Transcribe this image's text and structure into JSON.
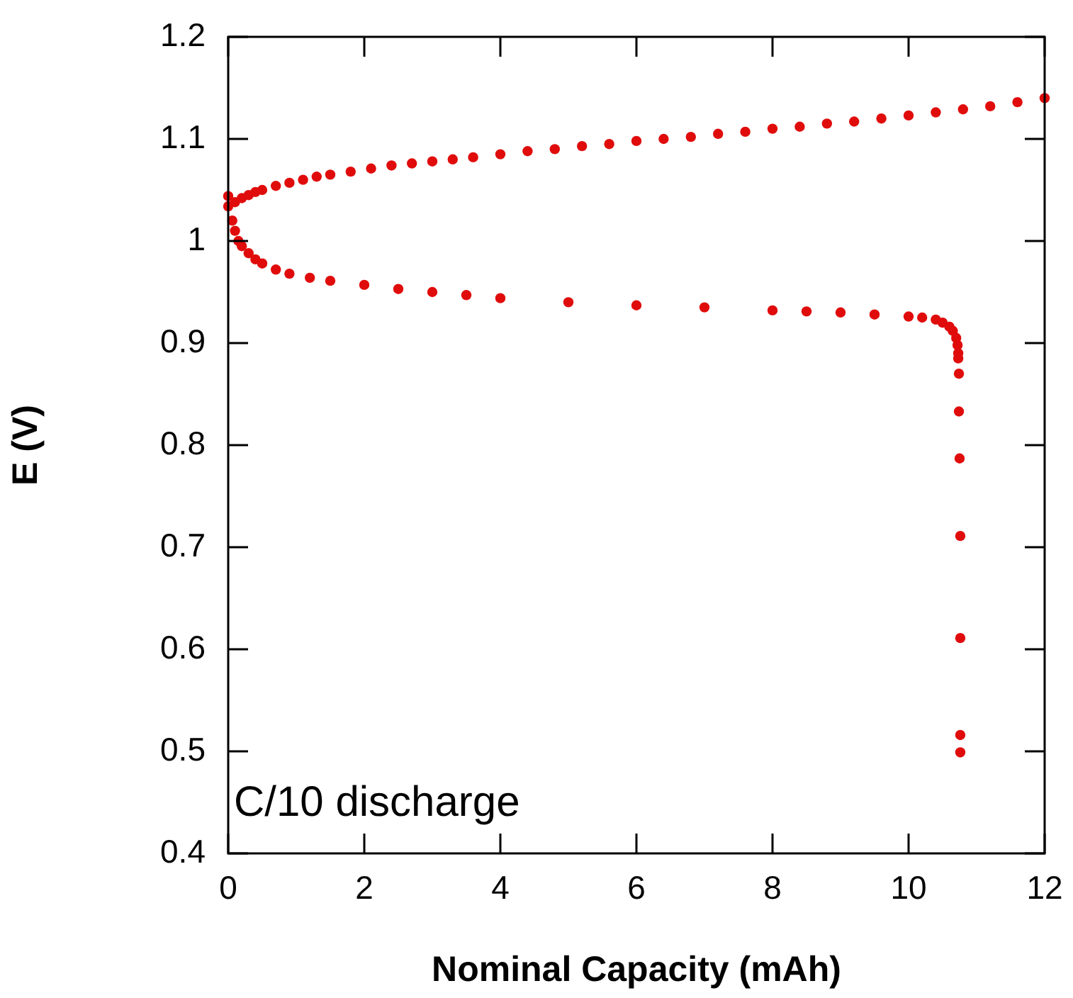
{
  "chart_data": {
    "type": "scatter",
    "xlabel": "Nominal Capacity (mAh)",
    "ylabel": "E (V)",
    "xlim": [
      0,
      12
    ],
    "xticks": [
      0,
      2,
      4,
      6,
      8,
      10,
      12
    ],
    "ylim": [
      0.4,
      1.2
    ],
    "yticks": [
      0.4,
      0.5,
      0.6,
      0.7,
      0.8,
      0.9,
      1,
      1.1,
      1.2
    ],
    "grid": false,
    "legend": false,
    "marker": "circle",
    "annotations": [
      "C/10 discharge"
    ],
    "series": [
      {
        "color": "#e00c0c",
        "x": [
          0,
          0.1,
          0.2,
          0.3,
          0.4,
          0.5,
          0.7,
          0.9,
          1.1,
          1.3,
          1.5,
          1.8,
          2.1,
          2.4,
          2.7,
          3.0,
          3.3,
          3.6,
          4.0,
          4.4,
          4.8,
          5.2,
          5.6,
          6.0,
          6.4,
          6.8,
          7.2,
          7.6,
          8.0,
          8.4,
          8.8,
          9.2,
          9.6,
          10.0,
          10.4,
          10.8,
          11.2,
          11.6,
          12.0
        ],
        "values": [
          1.044,
          1.038,
          1.042,
          1.045,
          1.048,
          1.05,
          1.054,
          1.057,
          1.06,
          1.063,
          1.065,
          1.068,
          1.071,
          1.074,
          1.076,
          1.078,
          1.08,
          1.082,
          1.085,
          1.088,
          1.09,
          1.093,
          1.095,
          1.098,
          1.1,
          1.102,
          1.105,
          1.107,
          1.11,
          1.112,
          1.115,
          1.117,
          1.12,
          1.123,
          1.126,
          1.129,
          1.132,
          1.136,
          1.14
        ]
      },
      {
        "color": "#e00c0c",
        "x": [
          0,
          0.06,
          0.1,
          0.15,
          0.2,
          0.3,
          0.4,
          0.5,
          0.7,
          0.9,
          1.2,
          1.5,
          2.0,
          2.5,
          3.0,
          3.5,
          4.0,
          5.0,
          6.0,
          7.0,
          8.0,
          8.5,
          9.0,
          9.5,
          10.0,
          10.2,
          10.4,
          10.5,
          10.6,
          10.65,
          10.7,
          10.72,
          10.73,
          10.73,
          10.74,
          10.74,
          10.75,
          10.76,
          10.76,
          10.76,
          10.76
        ],
        "values": [
          1.034,
          1.02,
          1.01,
          1.0,
          0.995,
          0.988,
          0.982,
          0.978,
          0.972,
          0.968,
          0.964,
          0.961,
          0.957,
          0.953,
          0.95,
          0.947,
          0.944,
          0.94,
          0.937,
          0.935,
          0.932,
          0.931,
          0.93,
          0.928,
          0.926,
          0.925,
          0.923,
          0.92,
          0.916,
          0.912,
          0.905,
          0.898,
          0.89,
          0.885,
          0.87,
          0.833,
          0.787,
          0.711,
          0.611,
          0.516,
          0.499
        ]
      }
    ]
  }
}
